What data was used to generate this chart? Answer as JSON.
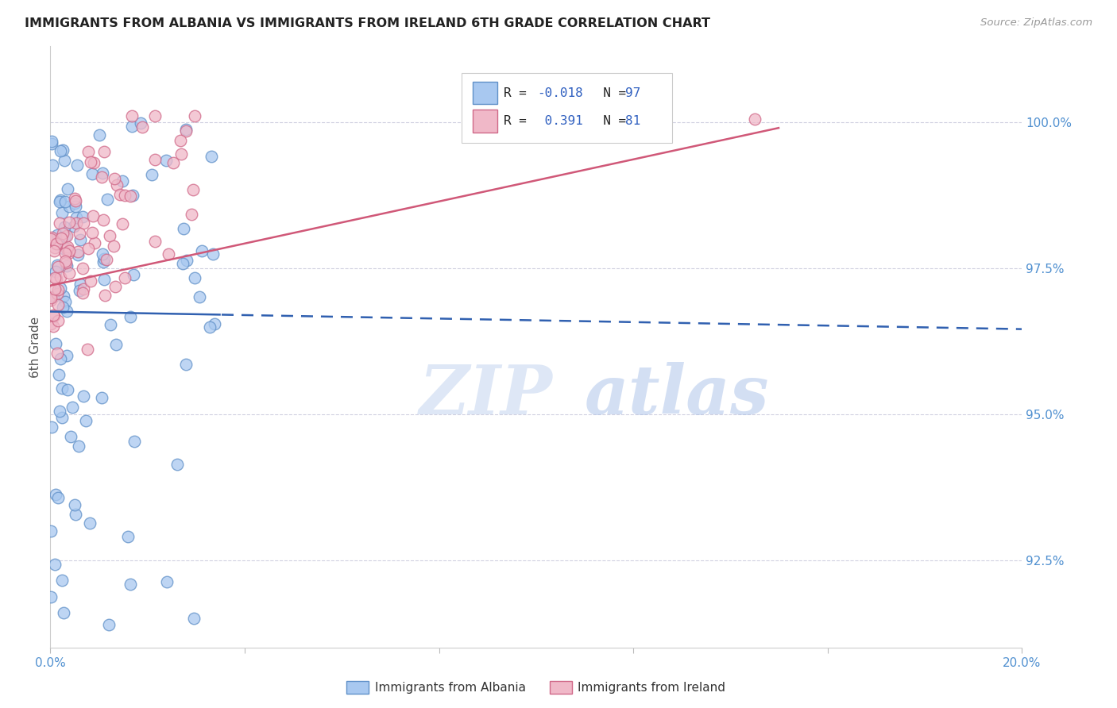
{
  "title": "IMMIGRANTS FROM ALBANIA VS IMMIGRANTS FROM IRELAND 6TH GRADE CORRELATION CHART",
  "source": "Source: ZipAtlas.com",
  "ylabel": "6th Grade",
  "ylabel_right_ticks": [
    92.5,
    95.0,
    97.5,
    100.0
  ],
  "ylabel_right_labels": [
    "92.5%",
    "95.0%",
    "97.5%",
    "100.0%"
  ],
  "xlim": [
    0.0,
    20.0
  ],
  "ylim": [
    91.0,
    101.3
  ],
  "legend_albania": "Immigrants from Albania",
  "legend_ireland": "Immigrants from Ireland",
  "R_albania": -0.018,
  "N_albania": 97,
  "R_ireland": 0.391,
  "N_ireland": 81,
  "color_albania_face": "#a8c8f0",
  "color_albania_edge": "#6090c8",
  "color_ireland_face": "#f0b8c8",
  "color_ireland_edge": "#d06888",
  "color_trendline_albania": "#3060b0",
  "color_trendline_ireland": "#d05878",
  "watermark_zip": "ZIP",
  "watermark_atlas": "atlas",
  "background_color": "#ffffff",
  "grid_color": "#d0d0e0",
  "tick_color": "#5090d0",
  "legend_R_color": "#333333",
  "legend_N_color": "#3060c0"
}
